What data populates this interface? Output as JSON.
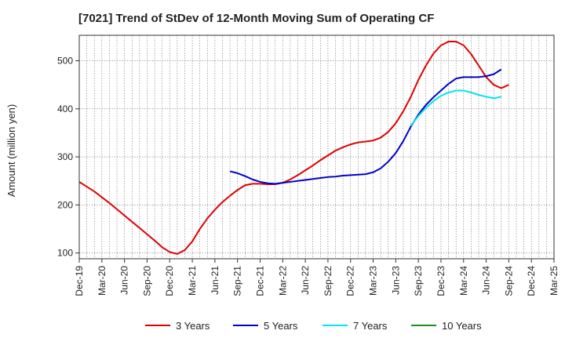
{
  "chart_data": {
    "type": "line",
    "title": "[7021]  Trend of StDev of 12-Month Moving Sum of Operating CF",
    "ylabel": "Amount (million yen)",
    "xlabel": "",
    "ylim": [
      88,
      553
    ],
    "y_ticks": [
      100,
      200,
      300,
      400,
      500
    ],
    "x_tick_labels": [
      "Dec-19",
      "Mar-20",
      "Jun-20",
      "Sep-20",
      "Dec-20",
      "Mar-21",
      "Jun-21",
      "Sep-21",
      "Dec-21",
      "Mar-22",
      "Jun-22",
      "Sep-22",
      "Dec-22",
      "Mar-23",
      "Jun-23",
      "Sep-23",
      "Dec-23",
      "Mar-24",
      "Jun-24",
      "Sep-24",
      "Dec-24",
      "Mar-25"
    ],
    "x_start": "2019-12",
    "x_end": "2025-03",
    "grid": true,
    "legend_position": "bottom",
    "series": [
      {
        "name": "3 Years",
        "color": "#e00000",
        "start": "2019-12",
        "values": [
          248,
          238,
          228,
          216,
          204,
          191,
          178,
          165,
          152,
          139,
          126,
          112,
          102,
          98,
          106,
          124,
          150,
          172,
          190,
          206,
          219,
          231,
          241,
          244,
          244,
          243,
          243,
          246,
          253,
          262,
          272,
          282,
          293,
          303,
          313,
          320,
          326,
          330,
          332,
          334,
          340,
          352,
          370,
          395,
          425,
          460,
          490,
          515,
          532,
          540,
          540,
          532,
          514,
          490,
          466,
          450,
          443,
          450
        ]
      },
      {
        "name": "5 Years",
        "color": "#0000cc",
        "start": "2021-08",
        "values": [
          270,
          266,
          260,
          253,
          248,
          245,
          244,
          246,
          248,
          250,
          252,
          254,
          256,
          258,
          259,
          261,
          262,
          263,
          264,
          268,
          276,
          290,
          308,
          333,
          363,
          388,
          408,
          424,
          438,
          452,
          463,
          466,
          466,
          466,
          468,
          472,
          482
        ]
      },
      {
        "name": "7 Years",
        "color": "#00e5ee",
        "start": "2023-08",
        "values": [
          365,
          385,
          402,
          416,
          427,
          434,
          438,
          438,
          434,
          429,
          425,
          422,
          425
        ]
      },
      {
        "name": "10 Years",
        "color": "#228b22",
        "start": "2024-09",
        "values": []
      }
    ]
  }
}
